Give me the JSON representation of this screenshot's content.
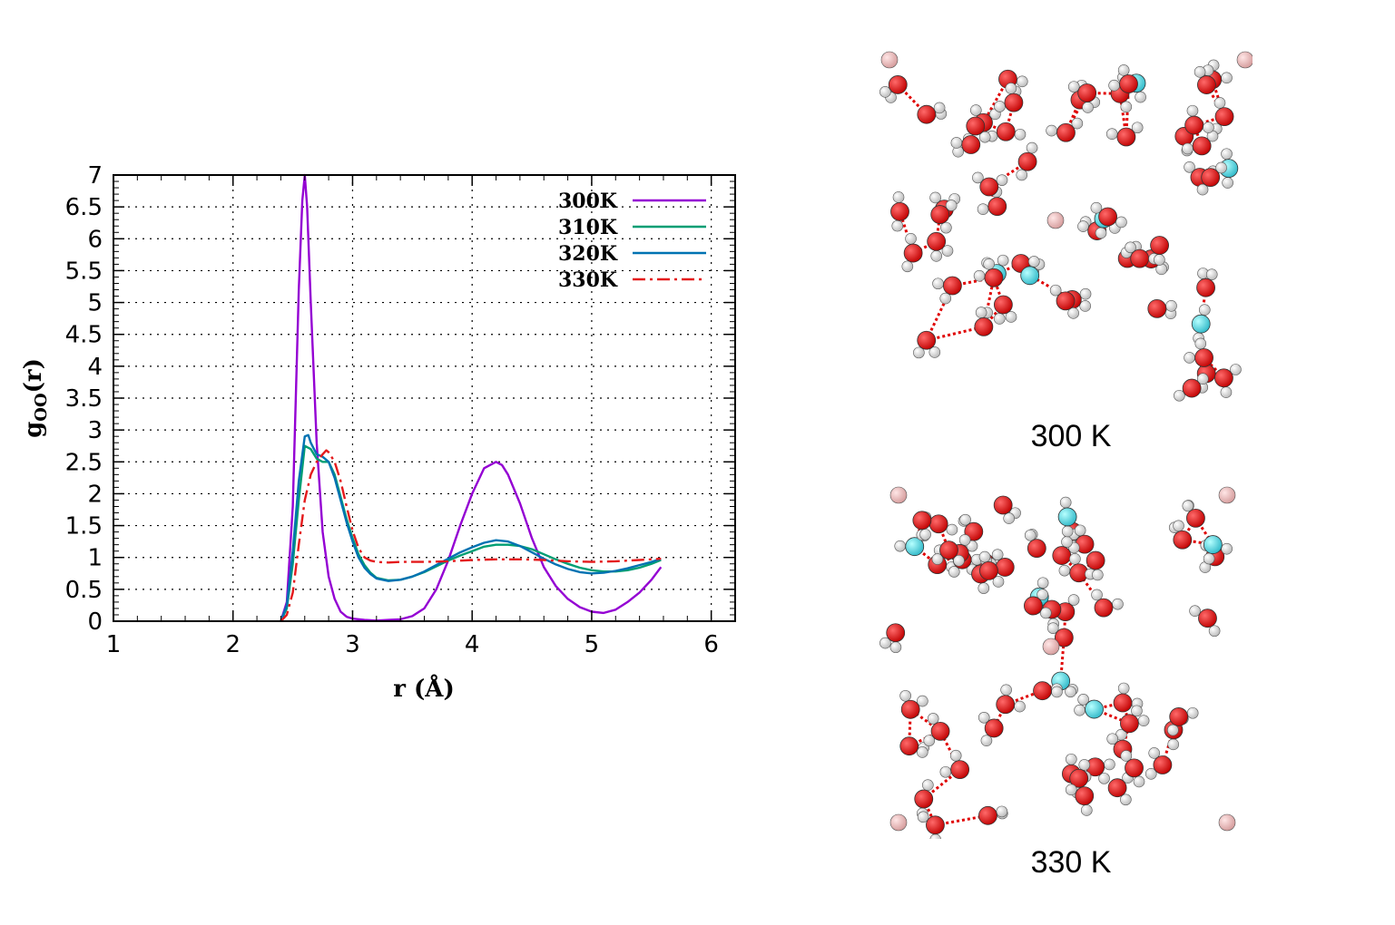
{
  "chart_data": {
    "type": "line",
    "ylabel_main": "g",
    "ylabel_sub": "OO",
    "ylabel_tail": "(r)",
    "xlabel": "r (Å)",
    "xlim": [
      1,
      6.2
    ],
    "ylim": [
      0,
      7
    ],
    "xticks": [
      1,
      2,
      3,
      4,
      5,
      6
    ],
    "yticks": [
      0,
      0.5,
      1,
      1.5,
      2,
      2.5,
      3,
      3.5,
      4,
      4.5,
      5,
      5.5,
      6,
      6.5,
      7
    ],
    "grid": true,
    "legend_position": "top-right",
    "series": [
      {
        "name": "300K",
        "color": "#9400d3",
        "dash": "solid",
        "x": [
          2.4,
          2.45,
          2.5,
          2.55,
          2.58,
          2.6,
          2.62,
          2.65,
          2.7,
          2.75,
          2.8,
          2.85,
          2.9,
          2.95,
          3.0,
          3.1,
          3.2,
          3.3,
          3.4,
          3.5,
          3.6,
          3.7,
          3.8,
          3.9,
          4.0,
          4.1,
          4.2,
          4.25,
          4.3,
          4.4,
          4.5,
          4.6,
          4.7,
          4.8,
          4.9,
          5.0,
          5.1,
          5.2,
          5.3,
          5.4,
          5.5,
          5.58
        ],
        "y": [
          0.0,
          0.3,
          1.8,
          5.2,
          6.6,
          7.0,
          6.5,
          5.0,
          2.8,
          1.4,
          0.7,
          0.35,
          0.15,
          0.07,
          0.04,
          0.02,
          0.01,
          0.02,
          0.03,
          0.08,
          0.2,
          0.5,
          0.95,
          1.5,
          2.0,
          2.4,
          2.5,
          2.45,
          2.3,
          1.85,
          1.3,
          0.85,
          0.55,
          0.35,
          0.22,
          0.15,
          0.13,
          0.18,
          0.3,
          0.45,
          0.65,
          0.85
        ]
      },
      {
        "name": "310K",
        "color": "#009e73",
        "dash": "solid",
        "x": [
          2.4,
          2.45,
          2.5,
          2.55,
          2.6,
          2.65,
          2.7,
          2.75,
          2.8,
          2.85,
          2.9,
          2.95,
          3.0,
          3.05,
          3.1,
          3.15,
          3.2,
          3.3,
          3.4,
          3.5,
          3.6,
          3.7,
          3.8,
          3.9,
          4.0,
          4.1,
          4.2,
          4.3,
          4.4,
          4.5,
          4.6,
          4.7,
          4.8,
          4.9,
          5.0,
          5.1,
          5.2,
          5.3,
          5.4,
          5.5,
          5.58
        ],
        "y": [
          0.0,
          0.2,
          0.9,
          1.9,
          2.75,
          2.7,
          2.55,
          2.5,
          2.5,
          2.3,
          1.95,
          1.6,
          1.3,
          1.05,
          0.88,
          0.76,
          0.68,
          0.64,
          0.65,
          0.7,
          0.77,
          0.86,
          0.95,
          1.03,
          1.1,
          1.17,
          1.2,
          1.2,
          1.18,
          1.13,
          1.05,
          0.97,
          0.9,
          0.84,
          0.8,
          0.78,
          0.78,
          0.8,
          0.84,
          0.9,
          0.96
        ]
      },
      {
        "name": "320K",
        "color": "#0072b2",
        "dash": "solid",
        "x": [
          2.4,
          2.45,
          2.5,
          2.55,
          2.6,
          2.63,
          2.65,
          2.7,
          2.75,
          2.8,
          2.85,
          2.9,
          2.95,
          3.0,
          3.05,
          3.1,
          3.15,
          3.2,
          3.3,
          3.4,
          3.5,
          3.6,
          3.7,
          3.8,
          3.9,
          4.0,
          4.1,
          4.2,
          4.3,
          4.4,
          4.5,
          4.6,
          4.7,
          4.8,
          4.9,
          5.0,
          5.1,
          5.2,
          5.3,
          5.4,
          5.5,
          5.58
        ],
        "y": [
          0.0,
          0.25,
          1.1,
          2.2,
          2.9,
          2.92,
          2.8,
          2.62,
          2.58,
          2.5,
          2.25,
          1.9,
          1.55,
          1.25,
          1.0,
          0.84,
          0.74,
          0.67,
          0.63,
          0.65,
          0.7,
          0.78,
          0.88,
          0.98,
          1.08,
          1.16,
          1.23,
          1.27,
          1.25,
          1.18,
          1.08,
          0.98,
          0.89,
          0.82,
          0.77,
          0.75,
          0.76,
          0.79,
          0.83,
          0.88,
          0.93,
          0.98
        ]
      },
      {
        "name": "330K",
        "color": "#e41a1c",
        "dash": "14,5,3,5",
        "x": [
          2.4,
          2.45,
          2.5,
          2.55,
          2.6,
          2.65,
          2.7,
          2.75,
          2.78,
          2.8,
          2.85,
          2.9,
          2.95,
          3.0,
          3.05,
          3.1,
          3.15,
          3.2,
          3.3,
          3.4,
          3.5,
          3.6,
          3.8,
          4.0,
          4.2,
          4.4,
          4.6,
          4.8,
          5.0,
          5.2,
          5.4,
          5.58
        ],
        "y": [
          0.0,
          0.1,
          0.45,
          1.2,
          1.9,
          2.3,
          2.5,
          2.62,
          2.68,
          2.65,
          2.5,
          2.2,
          1.8,
          1.42,
          1.15,
          1.0,
          0.95,
          0.93,
          0.92,
          0.93,
          0.93,
          0.93,
          0.94,
          0.96,
          0.97,
          0.97,
          0.96,
          0.94,
          0.93,
          0.94,
          0.96,
          0.98
        ]
      }
    ]
  },
  "snapshots": [
    {
      "caption": "300 K"
    },
    {
      "caption": "330 K"
    }
  ]
}
